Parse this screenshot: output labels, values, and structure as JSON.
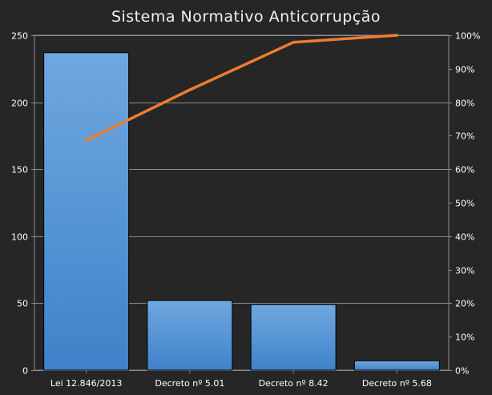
{
  "chart_data": {
    "type": "bar",
    "title": "Sistema Normativo Anticorrupção",
    "categories": [
      "Lei 12.846/2013",
      "Decreto nº 5.01",
      "Decreto nº 8.42",
      "Decreto nº 5.68"
    ],
    "series": [
      {
        "type": "bar",
        "axis": "left",
        "values": [
          237,
          52,
          49,
          7
        ],
        "color": "#4a8fd6"
      },
      {
        "type": "line",
        "axis": "right",
        "values": [
          68.6,
          83.7,
          97.9,
          100.0
        ],
        "color": "#ed7d31"
      }
    ],
    "ylim_left": [
      0,
      250
    ],
    "yticks_left": [
      "0",
      "50",
      "100",
      "150",
      "200",
      "250"
    ],
    "ylim_right": [
      0,
      100
    ],
    "yticks_right": [
      "0%",
      "10%",
      "20%",
      "30%",
      "40%",
      "50%",
      "60%",
      "70%",
      "80%",
      "90%",
      "100%"
    ],
    "grid": true,
    "legend": "none",
    "colors": {
      "background": "#262626",
      "plot": "#262626",
      "grid": "#8c8c8c",
      "text": "#ffffff"
    }
  }
}
